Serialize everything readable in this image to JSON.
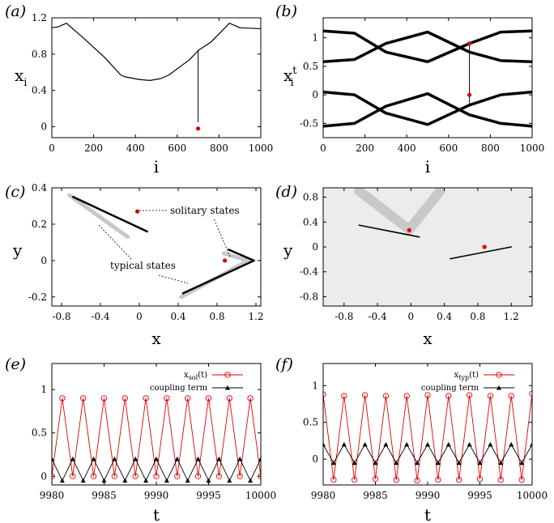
{
  "chart_data": [
    {
      "id": "a",
      "title": "(a)",
      "type": "line",
      "xlabel": "i",
      "ylabel": "x",
      "ylabel_sub": "i",
      "xlim": [
        0,
        1000
      ],
      "ylim": [
        -0.12,
        1.2
      ],
      "xticks": [
        "0",
        "200",
        "400",
        "600",
        "800",
        "1000"
      ],
      "yticks": [
        "0",
        "0.4",
        "0.8",
        "1.2"
      ],
      "series": [
        {
          "name": "x_i",
          "x": [
            0,
            30,
            70,
            150,
            250,
            330,
            350,
            420,
            470,
            520,
            560,
            660,
            700,
            760,
            850,
            900,
            1000
          ],
          "y": [
            1.09,
            1.1,
            1.14,
            0.98,
            0.77,
            0.57,
            0.55,
            0.52,
            0.51,
            0.53,
            0.57,
            0.74,
            0.84,
            0.93,
            1.14,
            1.09,
            1.08
          ]
        }
      ],
      "solitary": {
        "x": 700,
        "y": -0.02
      }
    },
    {
      "id": "b",
      "title": "(b)",
      "type": "line",
      "xlabel": "i",
      "ylabel": "x",
      "ylabel_sub": "i",
      "ylabel_sup": "t",
      "xlim": [
        0,
        1000
      ],
      "ylim": [
        -0.75,
        1.35
      ],
      "xticks": [
        "0",
        "200",
        "400",
        "600",
        "800",
        "1000"
      ],
      "yticks": [
        "-0.5",
        "0",
        "0.5",
        "1"
      ],
      "series": [
        {
          "name": "upper-1",
          "x": [
            0,
            150,
            300,
            500,
            700,
            850,
            1000
          ],
          "y": [
            1.12,
            1.08,
            0.75,
            0.58,
            0.9,
            1.1,
            1.12
          ]
        },
        {
          "name": "upper-2",
          "x": [
            0,
            150,
            300,
            500,
            700,
            850,
            1000
          ],
          "y": [
            0.58,
            0.62,
            0.9,
            1.1,
            0.75,
            0.6,
            0.58
          ]
        },
        {
          "name": "lower-1",
          "x": [
            0,
            150,
            300,
            500,
            700,
            850,
            1000
          ],
          "y": [
            0.05,
            0.0,
            -0.32,
            -0.52,
            -0.18,
            0.0,
            0.05
          ]
        },
        {
          "name": "lower-2",
          "x": [
            0,
            150,
            300,
            500,
            700,
            850,
            1000
          ],
          "y": [
            -0.55,
            -0.5,
            -0.2,
            0.02,
            -0.35,
            -0.5,
            -0.55
          ]
        }
      ],
      "solitary": [
        {
          "x": 700,
          "y": 0.9
        },
        {
          "x": 700,
          "y": 0.0
        }
      ]
    },
    {
      "id": "c",
      "title": "(c)",
      "type": "scatter",
      "xlabel": "x",
      "ylabel": "y",
      "xlim": [
        -0.9,
        1.25
      ],
      "ylim": [
        -0.25,
        0.4
      ],
      "xticks": [
        "-0.8",
        "-0.4",
        "0",
        "0.4",
        "0.8",
        "1.2"
      ],
      "yticks": [
        "-0.2",
        "0",
        "0.2",
        "0.4"
      ],
      "series": [
        {
          "name": "gray band 1",
          "x": [
            -0.72,
            -0.12
          ],
          "y": [
            0.36,
            0.13
          ]
        },
        {
          "name": "gray band 2",
          "x": [
            0.87,
            1.12
          ],
          "y": [
            0.04,
            0.0
          ]
        },
        {
          "name": "gray band 3",
          "x": [
            0.43,
            1.12
          ],
          "y": [
            -0.2,
            0.0
          ]
        },
        {
          "name": "typical 1",
          "x": [
            -0.68,
            0.08
          ],
          "y": [
            0.35,
            0.16
          ]
        },
        {
          "name": "typical 2a",
          "x": [
            0.45,
            1.18
          ],
          "y": [
            -0.18,
            0.0
          ]
        },
        {
          "name": "typical 2b",
          "x": [
            0.92,
            1.18
          ],
          "y": [
            0.06,
            0.0
          ]
        }
      ],
      "points": [
        {
          "x": -0.02,
          "y": 0.27
        },
        {
          "x": 0.88,
          "y": -0.0
        }
      ],
      "annotations": [
        "solitary states",
        "typical states"
      ]
    },
    {
      "id": "d",
      "title": "(d)",
      "type": "scatter",
      "xlabel": "x",
      "ylabel": "y",
      "xlim": [
        -1.05,
        1.45
      ],
      "ylim": [
        -0.95,
        0.95
      ],
      "xticks": [
        "-0.8",
        "-0.4",
        "0",
        "0.4",
        "0.8",
        "1.2"
      ],
      "yticks": [
        "-0.8",
        "-0.4",
        "0",
        "0.4",
        "0.8"
      ],
      "series": [
        {
          "name": "basin band left",
          "x": [
            -0.62,
            -0.02
          ],
          "y": [
            0.9,
            0.28
          ]
        },
        {
          "name": "basin band right",
          "x": [
            -0.02,
            0.35
          ],
          "y": [
            0.28,
            0.9
          ]
        },
        {
          "name": "line 1",
          "x": [
            -0.62,
            0.1
          ],
          "y": [
            0.35,
            0.16
          ]
        },
        {
          "name": "line 2",
          "x": [
            0.47,
            1.2
          ],
          "y": [
            -0.19,
            0.0
          ]
        }
      ],
      "points": [
        {
          "x": -0.02,
          "y": 0.27
        },
        {
          "x": 0.88,
          "y": -0.0
        }
      ]
    },
    {
      "id": "e",
      "title": "(e)",
      "type": "line",
      "xlabel": "t",
      "xlim": [
        9980,
        10000
      ],
      "ylim": [
        -0.1,
        1.3
      ],
      "xticks": [
        "9980",
        "9985",
        "9990",
        "9995",
        "10000"
      ],
      "yticks": [
        "0",
        "0.5",
        "1"
      ],
      "legend": [
        "x",
        "coupling term"
      ],
      "legend_sub": [
        "sol",
        ""
      ],
      "legend_suffix": [
        "(t)",
        ""
      ],
      "series": [
        {
          "name": "x_sol(t)",
          "x": [
            9980,
            9981,
            9982,
            9983,
            9984,
            9985,
            9986,
            9987,
            9988,
            9989,
            9990,
            9991,
            9992,
            9993,
            9994,
            9995,
            9996,
            9997,
            9998,
            9999,
            10000
          ],
          "y": [
            0.0,
            0.9,
            0.0,
            0.9,
            0.0,
            0.9,
            0.0,
            0.9,
            0.0,
            0.9,
            0.0,
            0.9,
            0.0,
            0.9,
            0.0,
            0.9,
            0.0,
            0.9,
            0.0,
            0.9,
            0.0
          ]
        },
        {
          "name": "coupling term",
          "x": [
            9980,
            9981,
            9982,
            9983,
            9984,
            9985,
            9986,
            9987,
            9988,
            9989,
            9990,
            9991,
            9992,
            9993,
            9994,
            9995,
            9996,
            9997,
            9998,
            9999,
            10000
          ],
          "y": [
            0.2,
            -0.05,
            0.2,
            -0.05,
            0.2,
            -0.05,
            0.2,
            -0.05,
            0.2,
            -0.05,
            0.2,
            -0.05,
            0.2,
            -0.05,
            0.2,
            -0.05,
            0.2,
            -0.05,
            0.2,
            -0.05,
            0.2
          ]
        }
      ]
    },
    {
      "id": "f",
      "title": "(f)",
      "type": "line",
      "xlabel": "t",
      "xlim": [
        9980,
        10000
      ],
      "ylim": [
        -0.35,
        1.3
      ],
      "xticks": [
        "9980",
        "9985",
        "9990",
        "9995",
        "10000"
      ],
      "yticks": [
        "0",
        "0.5",
        "1"
      ],
      "legend": [
        "x",
        "coupling term"
      ],
      "legend_sub": [
        "typ",
        ""
      ],
      "legend_suffix": [
        "(t)",
        ""
      ],
      "series": [
        {
          "name": "x_typ(t)",
          "x": [
            9980,
            9981,
            9982,
            9983,
            9984,
            9985,
            9986,
            9987,
            9988,
            9989,
            9990,
            9991,
            9992,
            9993,
            9994,
            9995,
            9996,
            9997,
            9998,
            9999,
            10000
          ],
          "y": [
            0.88,
            -0.28,
            0.86,
            -0.28,
            0.87,
            -0.27,
            0.86,
            -0.28,
            0.86,
            -0.29,
            0.87,
            -0.28,
            0.86,
            -0.28,
            0.87,
            -0.27,
            0.86,
            -0.28,
            0.86,
            -0.28,
            0.89
          ]
        },
        {
          "name": "coupling term",
          "x": [
            9980,
            9981,
            9982,
            9983,
            9984,
            9985,
            9986,
            9987,
            9988,
            9989,
            9990,
            9991,
            9992,
            9993,
            9994,
            9995,
            9996,
            9997,
            9998,
            9999,
            10000
          ],
          "y": [
            0.2,
            -0.05,
            0.2,
            -0.05,
            0.2,
            -0.05,
            0.2,
            -0.05,
            0.2,
            -0.05,
            0.2,
            -0.05,
            0.2,
            -0.05,
            0.2,
            -0.05,
            0.2,
            -0.05,
            0.2,
            -0.05,
            0.2
          ]
        }
      ]
    }
  ],
  "colors": {
    "axis": "#000000",
    "curve": "#000000",
    "accent": "#e00000",
    "band": "#c8c8c8",
    "basin": "#ececec"
  }
}
